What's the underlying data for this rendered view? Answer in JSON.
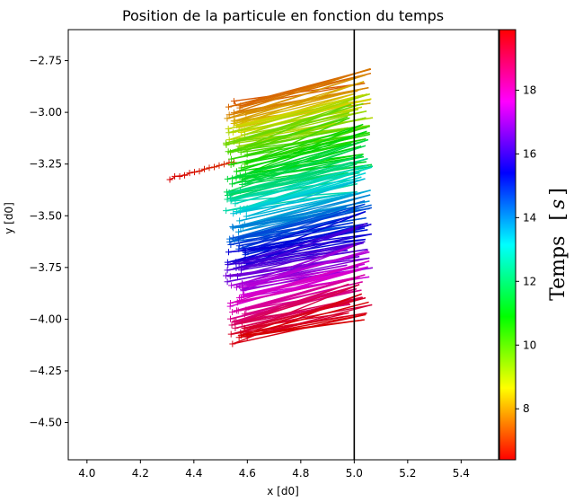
{
  "chart_data": {
    "type": "line",
    "title": "Position de la particule en fonction du temps",
    "xlabel": "x [d0]",
    "ylabel": "y [d0]",
    "xlim": [
      3.93,
      5.54
    ],
    "ylim": [
      -4.68,
      -2.6
    ],
    "xticks": [
      "4.0",
      "4.2",
      "4.4",
      "4.6",
      "4.8",
      "5.0",
      "5.2",
      "5.4"
    ],
    "xtick_values": [
      4.0,
      4.2,
      4.4,
      4.6,
      4.8,
      5.0,
      5.2,
      5.4
    ],
    "yticks": [
      "−2.75",
      "−3.00",
      "−3.25",
      "−3.50",
      "−3.75",
      "−4.00",
      "−4.25",
      "−4.50"
    ],
    "ytick_values": [
      -2.75,
      -3.0,
      -3.25,
      -3.5,
      -3.75,
      -4.0,
      -4.25,
      -4.5
    ],
    "vertical_line_x": 5.0,
    "grid": false,
    "colorbar": {
      "label": "Temps [s]",
      "label_text": "Temps",
      "label_unit": "s",
      "range": [
        6.4,
        19.9
      ],
      "ticks": [
        "8",
        "10",
        "12",
        "14",
        "16",
        "18"
      ],
      "tick_values": [
        8,
        10,
        12,
        14,
        16,
        18
      ],
      "colormap": "hsv"
    },
    "trajectory": {
      "description_units": "data units",
      "left_x_range": [
        4.52,
        4.6
      ],
      "right_x_range": [
        4.97,
        5.07
      ],
      "time_start": 6.4,
      "time_end": 19.9,
      "y_top_band": -2.97,
      "y_bottom_band": -4.12,
      "early_segment": {
        "x_start": 4.31,
        "y_start": -3.32,
        "x_end": 4.55,
        "y_end": -3.24
      }
    }
  },
  "colors": {
    "vertical_line": "#000000",
    "axes": "#000000"
  }
}
